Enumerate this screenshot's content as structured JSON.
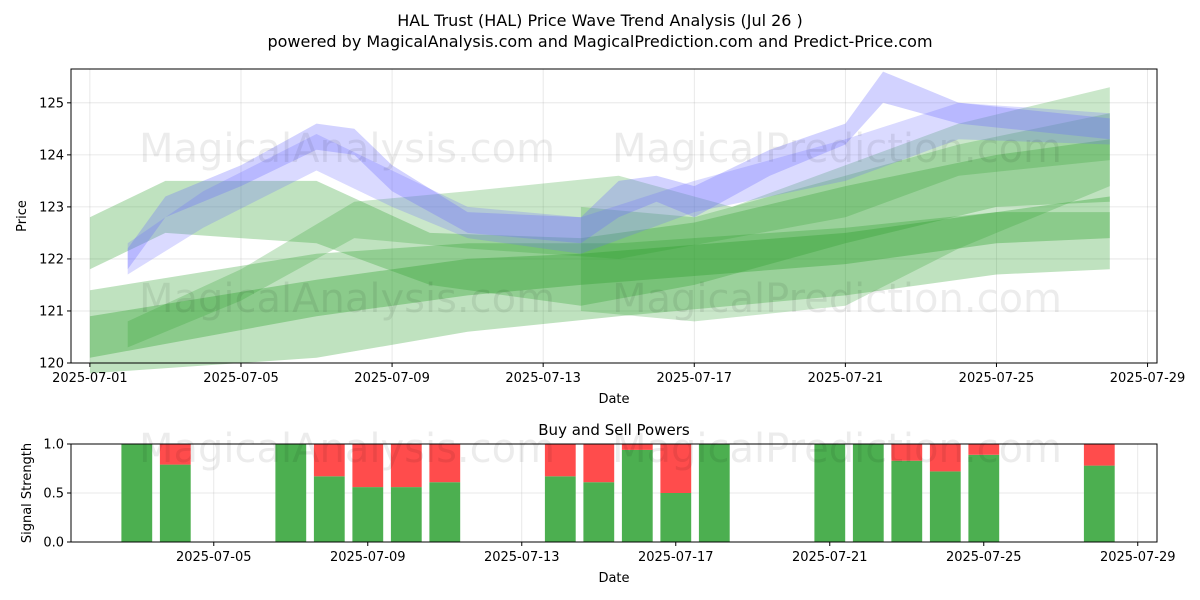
{
  "title_line1": "HAL Trust (HAL) Price Wave Trend Analysis (Jul 26 )",
  "title_line2": "powered by MagicalAnalysis.com and MagicalPrediction.com and Predict-Price.com",
  "watermarks": [
    "MagicalAnalysis.com",
    "MagicalPrediction.com"
  ],
  "colors": {
    "green": "#2ca02c",
    "blue": "#6a6aff",
    "buy": "#4caf50",
    "sell": "#ff4c4c"
  },
  "chart_data": [
    {
      "type": "area",
      "title": "",
      "xlabel": "Date",
      "ylabel": "Price",
      "xlim": [
        "2025-06-30T12:00",
        "2025-07-29T06:00"
      ],
      "ylim": [
        120,
        125.65
      ],
      "x_ticks": [
        "2025-07-01",
        "2025-07-05",
        "2025-07-09",
        "2025-07-13",
        "2025-07-17",
        "2025-07-21",
        "2025-07-25",
        "2025-07-29"
      ],
      "y_ticks": [
        120,
        121,
        122,
        123,
        124,
        125
      ],
      "grid": true,
      "series": [
        {
          "color": "green",
          "opacity": 0.3,
          "dates": [
            "2025-07-01",
            "2025-07-07",
            "2025-07-11",
            "2025-07-15",
            "2025-07-21",
            "2025-07-25",
            "2025-07-28"
          ],
          "lower": [
            119.8,
            120.1,
            120.6,
            120.9,
            121.3,
            121.7,
            121.8
          ],
          "upper": [
            121.4,
            122.1,
            122.3,
            122.3,
            122.6,
            122.9,
            122.9
          ]
        },
        {
          "color": "green",
          "opacity": 0.35,
          "dates": [
            "2025-07-01",
            "2025-07-07",
            "2025-07-11",
            "2025-07-14",
            "2025-07-21",
            "2025-07-25",
            "2025-07-28"
          ],
          "lower": [
            120.1,
            120.9,
            121.3,
            121.5,
            121.9,
            122.3,
            122.4
          ],
          "upper": [
            120.9,
            121.6,
            122.0,
            122.1,
            122.5,
            122.9,
            123.2
          ]
        },
        {
          "color": "green",
          "opacity": 0.3,
          "dates": [
            "2025-07-01",
            "2025-07-03",
            "2025-07-07",
            "2025-07-10",
            "2025-07-14",
            "2025-07-17",
            "2025-07-21",
            "2025-07-25",
            "2025-07-28"
          ],
          "lower": [
            121.8,
            122.5,
            122.3,
            121.5,
            121.1,
            121.5,
            122.3,
            123.0,
            123.1
          ],
          "upper": [
            122.8,
            123.5,
            123.5,
            122.5,
            122.4,
            122.7,
            123.4,
            124.0,
            124.3
          ]
        },
        {
          "color": "green",
          "opacity": 0.25,
          "dates": [
            "2025-07-02",
            "2025-07-05",
            "2025-07-08",
            "2025-07-11",
            "2025-07-15",
            "2025-07-18",
            "2025-07-21",
            "2025-07-24",
            "2025-07-28"
          ],
          "lower": [
            120.3,
            121.2,
            122.4,
            122.2,
            122.0,
            122.4,
            122.8,
            123.6,
            123.9
          ],
          "upper": [
            120.8,
            121.8,
            123.1,
            123.3,
            123.6,
            123.0,
            123.8,
            124.6,
            125.3
          ]
        },
        {
          "color": "green",
          "opacity": 0.25,
          "dates": [
            "2025-07-14",
            "2025-07-17",
            "2025-07-21",
            "2025-07-24",
            "2025-07-28"
          ],
          "lower": [
            121.0,
            120.8,
            121.1,
            122.2,
            123.4
          ],
          "upper": [
            123.0,
            122.8,
            123.6,
            124.2,
            124.8
          ]
        },
        {
          "color": "blue",
          "opacity": 0.3,
          "dates": [
            "2025-07-02",
            "2025-07-03",
            "2025-07-05",
            "2025-07-07",
            "2025-07-08",
            "2025-07-09",
            "2025-07-11",
            "2025-07-14",
            "2025-07-15",
            "2025-07-16",
            "2025-07-17",
            "2025-07-19",
            "2025-07-21",
            "2025-07-22",
            "2025-07-24",
            "2025-07-28"
          ],
          "lower": [
            121.8,
            122.8,
            123.4,
            124.1,
            124.0,
            123.3,
            122.5,
            122.3,
            122.8,
            123.1,
            122.8,
            123.6,
            124.2,
            125.0,
            124.6,
            124.3
          ],
          "upper": [
            122.2,
            123.2,
            123.8,
            124.6,
            124.5,
            123.8,
            122.9,
            122.8,
            123.5,
            123.6,
            123.4,
            124.1,
            124.6,
            125.6,
            125.0,
            124.7
          ]
        },
        {
          "color": "blue",
          "opacity": 0.25,
          "dates": [
            "2025-07-02",
            "2025-07-04",
            "2025-07-07",
            "2025-07-09",
            "2025-07-11",
            "2025-07-14",
            "2025-07-17",
            "2025-07-21",
            "2025-07-24",
            "2025-07-28"
          ],
          "lower": [
            121.7,
            122.6,
            123.7,
            123.0,
            122.4,
            122.1,
            122.9,
            123.5,
            124.3,
            124.2
          ],
          "upper": [
            122.3,
            123.3,
            124.4,
            123.7,
            123.0,
            122.8,
            123.5,
            124.3,
            125.0,
            124.8
          ]
        }
      ]
    },
    {
      "type": "bar",
      "title": "Buy and Sell Powers",
      "xlabel": "Date",
      "ylabel": "Signal Strength",
      "xlim": [
        "2025-07-01T07:00",
        "2025-07-29T12:00"
      ],
      "ylim": [
        0,
        1
      ],
      "x_ticks": [
        "2025-07-05",
        "2025-07-09",
        "2025-07-13",
        "2025-07-17",
        "2025-07-21",
        "2025-07-25",
        "2025-07-29"
      ],
      "y_ticks": [
        "0.0",
        "0.5",
        "1.0"
      ],
      "grid": true,
      "dates": [
        "2025-07-03",
        "2025-07-04",
        "2025-07-07",
        "2025-07-08",
        "2025-07-09",
        "2025-07-10",
        "2025-07-11",
        "2025-07-14",
        "2025-07-15",
        "2025-07-16",
        "2025-07-17",
        "2025-07-18",
        "2025-07-21",
        "2025-07-22",
        "2025-07-23",
        "2025-07-24",
        "2025-07-25",
        "2025-07-28"
      ],
      "buy": [
        1.0,
        0.79,
        1.0,
        0.67,
        0.56,
        0.56,
        0.61,
        0.67,
        0.61,
        0.94,
        0.5,
        1.0,
        1.0,
        1.0,
        0.83,
        0.72,
        0.89,
        0.78
      ],
      "sell": [
        0.0,
        0.21,
        0.0,
        0.33,
        0.44,
        0.44,
        0.39,
        0.33,
        0.39,
        0.06,
        0.5,
        0.0,
        0.0,
        0.0,
        0.17,
        0.28,
        0.11,
        0.22
      ]
    }
  ]
}
